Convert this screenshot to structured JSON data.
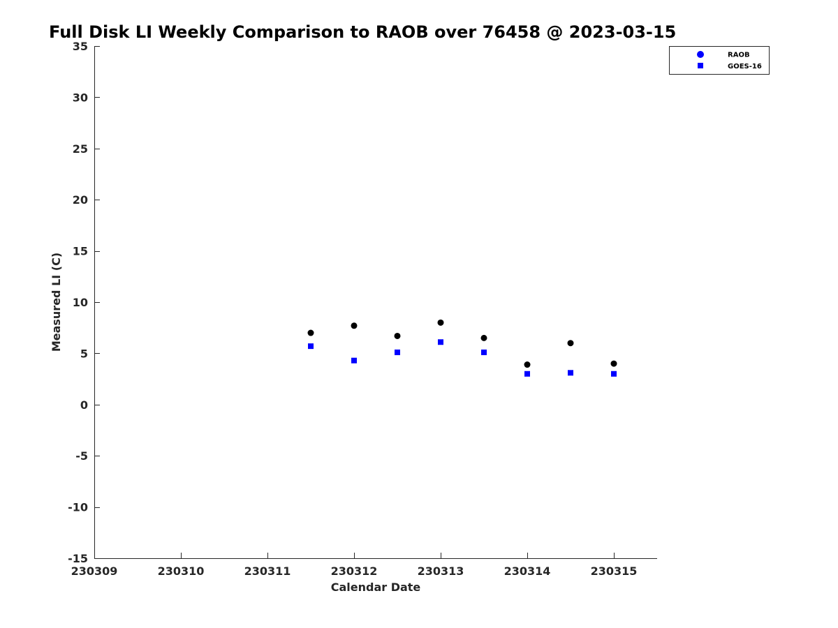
{
  "chart_data": {
    "type": "scatter",
    "title": "Full Disk LI Weekly Comparison to RAOB over 76458 @ 2023-03-15",
    "xlabel": "Calendar Date",
    "ylabel": "Measured LI (C)",
    "xlim": [
      "2023-03-09",
      "2023-03-15 12:00"
    ],
    "ylim": [
      -15,
      35
    ],
    "x_ticks": [
      "2023-03-09",
      "2023-03-10",
      "2023-03-11",
      "2023-03-12",
      "2023-03-13",
      "2023-03-14",
      "2023-03-15"
    ],
    "x_tick_labels": [
      "230309",
      "230310",
      "230311",
      "230312",
      "230313",
      "230314",
      "230315"
    ],
    "y_ticks": [
      35,
      30,
      25,
      20,
      15,
      10,
      5,
      0,
      -5,
      -10,
      -15
    ],
    "y_tick_labels": [
      "35",
      "30",
      "25",
      "20",
      "15",
      "10",
      "5",
      "0",
      "-5",
      "-10",
      "-15"
    ],
    "grid": false,
    "legend_position": "top-right",
    "series": [
      {
        "name": "RAOB",
        "marker": "circle",
        "color": "#000000",
        "legend_color": "#0000ff",
        "x": [
          "2023-03-11 12:00",
          "2023-03-12 00:00",
          "2023-03-12 12:00",
          "2023-03-13 00:00",
          "2023-03-13 12:00",
          "2023-03-14 00:00",
          "2023-03-14 12:00",
          "2023-03-15 00:00"
        ],
        "y": [
          7.0,
          7.7,
          6.7,
          8.0,
          6.5,
          3.9,
          6.0,
          4.0
        ]
      },
      {
        "name": "GOES-16",
        "marker": "square",
        "color": "#0000ff",
        "legend_color": "#0000ff",
        "x": [
          "2023-03-11 12:00",
          "2023-03-12 00:00",
          "2023-03-12 12:00",
          "2023-03-13 00:00",
          "2023-03-13 12:00",
          "2023-03-14 00:00",
          "2023-03-14 12:00",
          "2023-03-15 00:00"
        ],
        "y": [
          5.7,
          4.3,
          5.1,
          6.1,
          5.1,
          3.0,
          3.1,
          3.0
        ]
      }
    ]
  }
}
